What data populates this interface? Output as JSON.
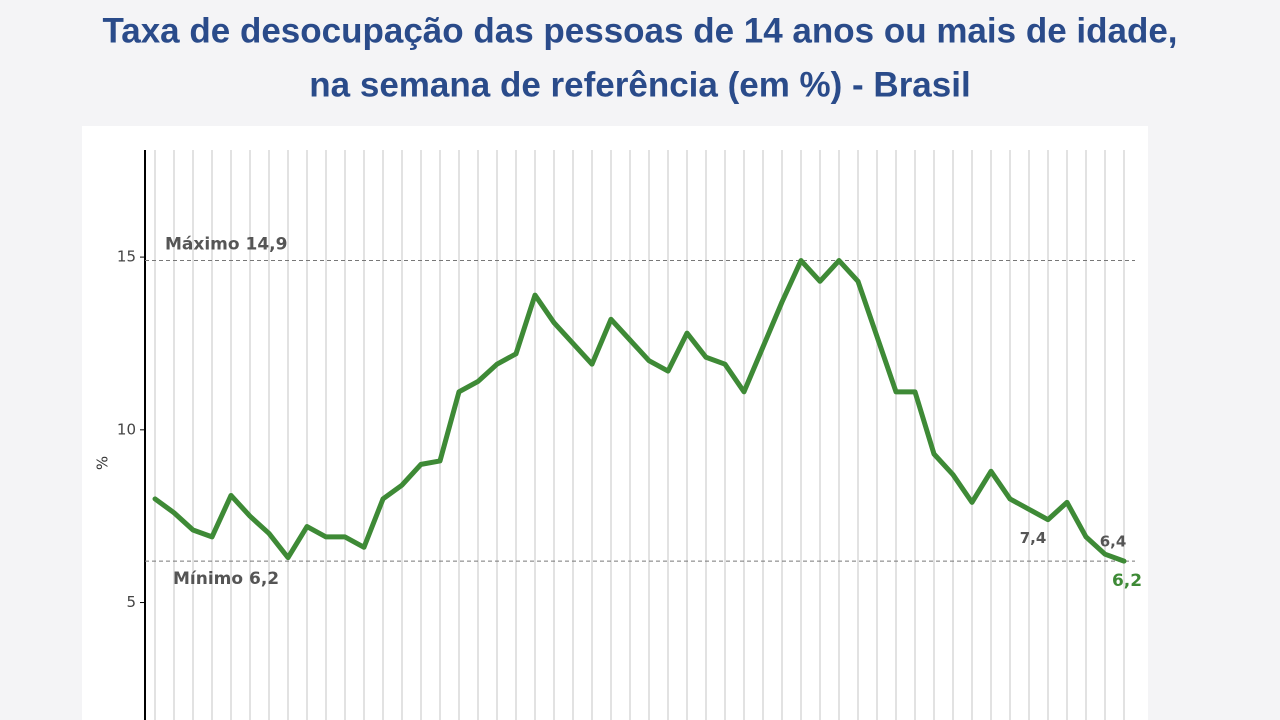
{
  "chart_data": {
    "type": "line",
    "title_lines": [
      "Taxa de desocupação das pessoas de 14 anos ou mais de idade,",
      "na semana de referência (em %) - Brasil"
    ],
    "ylabel": "%",
    "categories": [
      null,
      null,
      null,
      null,
      null,
      null,
      null,
      null,
      null,
      null,
      null,
      null,
      null,
      null,
      null,
      null,
      null,
      null,
      null,
      null,
      null,
      null,
      null,
      null,
      null,
      null,
      null,
      null,
      null,
      null,
      null,
      null,
      null,
      null,
      null,
      null,
      null,
      null,
      null,
      null,
      null,
      null,
      null,
      null,
      null,
      null,
      null,
      null,
      null,
      null,
      null,
      null
    ],
    "series": [
      {
        "color": "#3e8a36",
        "values": [
          8.0,
          7.6,
          7.1,
          6.9,
          8.1,
          7.5,
          7.0,
          6.3,
          7.2,
          6.9,
          6.9,
          6.6,
          8.0,
          8.4,
          9.0,
          9.1,
          11.1,
          11.4,
          11.9,
          12.2,
          13.9,
          13.1,
          12.5,
          11.9,
          13.2,
          12.6,
          12.0,
          11.7,
          12.8,
          12.1,
          11.9,
          11.1,
          12.4,
          13.7,
          14.9,
          14.3,
          14.9,
          14.3,
          12.7,
          11.1,
          11.1,
          9.3,
          8.7,
          7.9,
          8.8,
          8.0,
          7.7,
          7.4,
          7.9,
          6.9,
          6.4,
          6.2
        ],
        "value_labels": [
          null,
          null,
          null,
          null,
          null,
          null,
          null,
          null,
          null,
          null,
          null,
          null,
          null,
          null,
          null,
          null,
          null,
          null,
          null,
          null,
          null,
          null,
          null,
          null,
          null,
          null,
          null,
          null,
          null,
          null,
          null,
          null,
          null,
          null,
          null,
          null,
          null,
          null,
          null,
          null,
          null,
          null,
          null,
          null,
          null,
          null,
          null,
          "7,4",
          null,
          null,
          "6,4",
          "6,2"
        ]
      }
    ],
    "ylim": [
      1.6,
      18.1
    ],
    "yticks": [
      5,
      10,
      15
    ],
    "grid": true,
    "annotations": [
      {
        "text": "Máximo 14,9",
        "y": 14.9
      },
      {
        "text": "Mínimo 6,2",
        "y": 6.2
      }
    ]
  }
}
